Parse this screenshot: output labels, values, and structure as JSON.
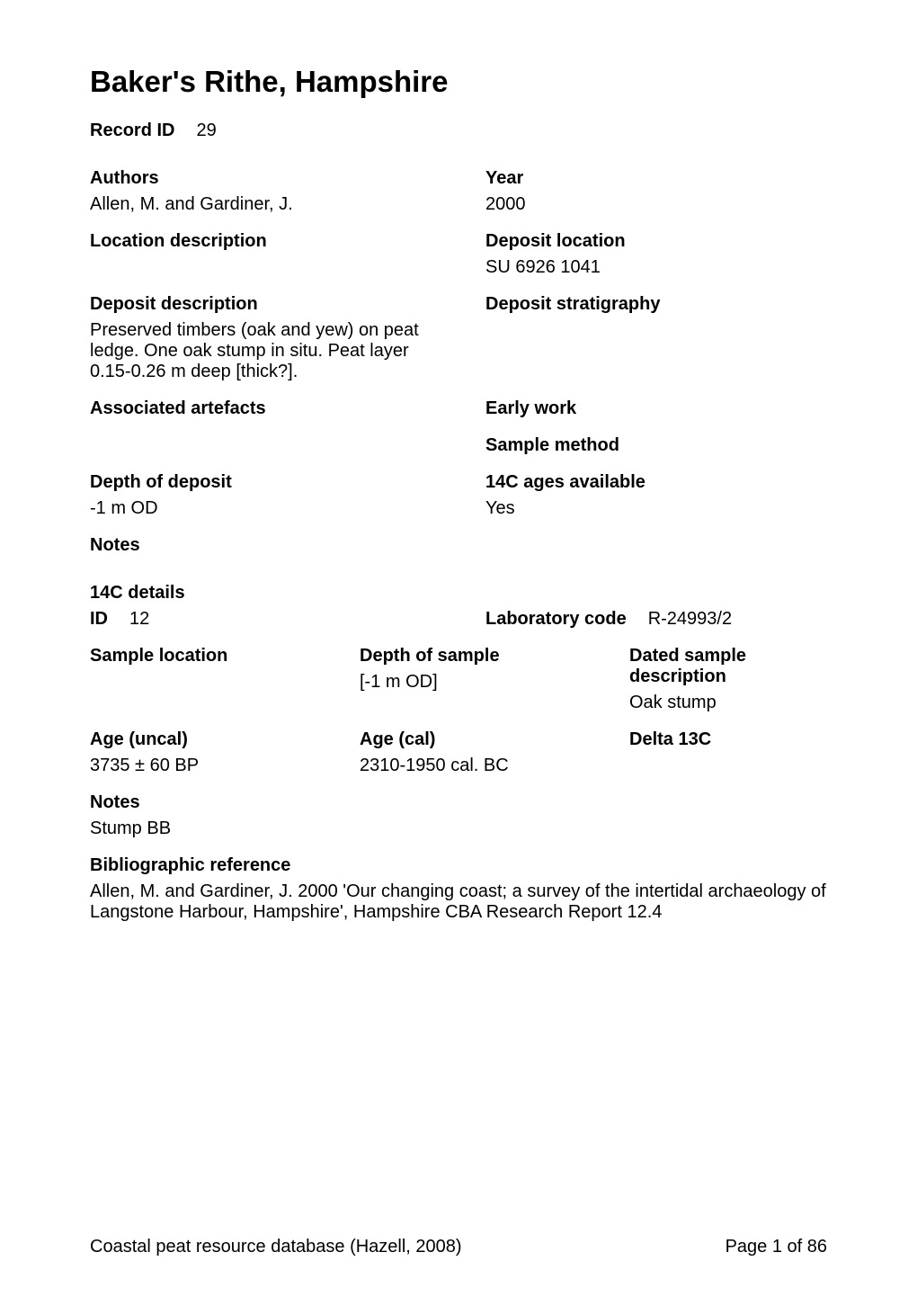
{
  "title": "Baker's Rithe, Hampshire",
  "record_id": {
    "label": "Record ID",
    "value": "29"
  },
  "authors": {
    "label": "Authors",
    "value": "Allen, M. and Gardiner, J."
  },
  "year": {
    "label": "Year",
    "value": "2000"
  },
  "location_description": {
    "label": "Location description",
    "value": ""
  },
  "deposit_location": {
    "label": "Deposit location",
    "value": "SU 6926 1041"
  },
  "deposit_description": {
    "label": "Deposit description",
    "value": "Preserved timbers (oak and yew) on peat ledge. One oak stump in situ. Peat layer 0.15-0.26 m deep [thick?]."
  },
  "deposit_stratigraphy": {
    "label": "Deposit stratigraphy",
    "value": ""
  },
  "associated_artefacts": {
    "label": "Associated artefacts",
    "value": ""
  },
  "early_work": {
    "label": "Early work",
    "value": ""
  },
  "sample_method": {
    "label": "Sample method",
    "value": ""
  },
  "depth_of_deposit": {
    "label": "Depth of deposit",
    "value": "-1 m OD"
  },
  "c14_ages_available": {
    "label": "14C ages available",
    "value": "Yes"
  },
  "notes_top": {
    "label": "Notes",
    "value": ""
  },
  "c14_details": {
    "section_label": "14C details",
    "id": {
      "label": "ID",
      "value": "12"
    },
    "laboratory_code": {
      "label": "Laboratory code",
      "value": "R-24993/2"
    },
    "sample_location": {
      "label": "Sample location",
      "value": ""
    },
    "depth_of_sample": {
      "label": "Depth of sample",
      "value": "[-1 m OD]"
    },
    "dated_sample_description": {
      "label": "Dated sample description",
      "value": "Oak stump"
    },
    "age_uncal": {
      "label": "Age (uncal)",
      "value": "3735 ± 60 BP"
    },
    "age_cal": {
      "label": "Age (cal)",
      "value": "2310-1950 cal. BC"
    },
    "delta_13c": {
      "label": "Delta 13C",
      "value": ""
    }
  },
  "notes_bottom": {
    "label": "Notes",
    "value": "Stump BB"
  },
  "bibliographic_reference": {
    "label": "Bibliographic reference",
    "value": "Allen, M. and Gardiner, J.  2000  'Our changing coast; a survey of the intertidal archaeology of Langstone Harbour, Hampshire',  Hampshire CBA Research Report 12.4"
  },
  "footer": {
    "left": "Coastal  peat resource database (Hazell, 2008)",
    "right": "Page 1 of 86"
  }
}
